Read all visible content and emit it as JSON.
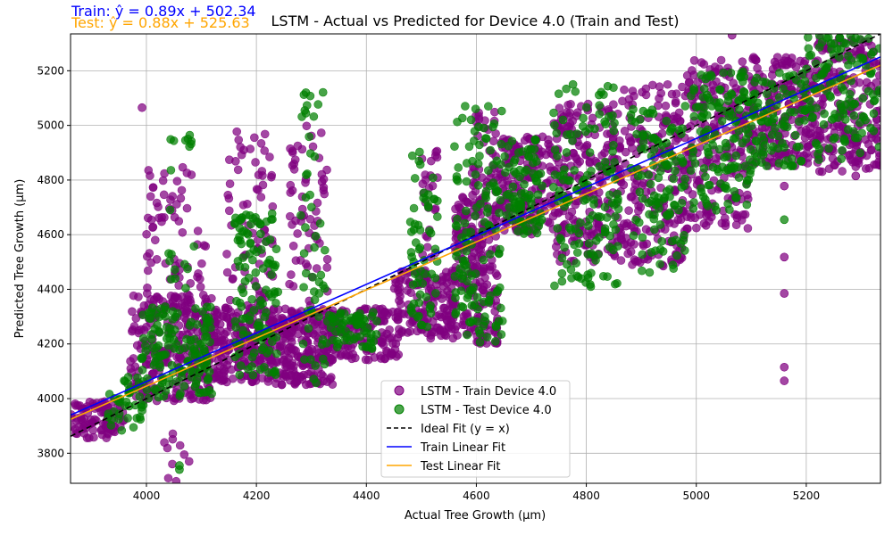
{
  "chart_data": {
    "type": "scatter",
    "title": "LSTM - Actual vs Predicted for Device 4.0 (Train and Test)",
    "xlabel": "Actual Tree Growth (µm)",
    "ylabel": "Predicted Tree Growth (µm)",
    "xlim": [
      3862,
      5335
    ],
    "ylim": [
      3690,
      5335
    ],
    "xticks": [
      4000,
      4200,
      4400,
      4600,
      4800,
      5000,
      5200
    ],
    "yticks": [
      3800,
      4000,
      4200,
      4400,
      4600,
      4800,
      5000,
      5200
    ],
    "grid": true,
    "legend_position": "lower-center",
    "annotations": {
      "train_equation": "Train: ŷ = 0.89x + 502.34",
      "test_equation": "Test: ŷ = 0.88x + 525.63",
      "train_color": "#0000ff",
      "test_color": "#ffa500"
    },
    "series": [
      {
        "name": "LSTM - Train Device 4.0",
        "kind": "scatter",
        "color": "#800080",
        "clusters": [
          {
            "x": [
              3862,
              3960
            ],
            "y": [
              3855,
              3990
            ],
            "n": 90
          },
          {
            "x": [
              3970,
              4120
            ],
            "y": [
              3990,
              4380
            ],
            "n": 260
          },
          {
            "x": [
              4000,
              4110
            ],
            "y": [
              4350,
              4880
            ],
            "n": 70
          },
          {
            "x": [
              4120,
              4235
            ],
            "y": [
              4060,
              4340
            ],
            "n": 220
          },
          {
            "x": [
              4140,
              4230
            ],
            "y": [
              4340,
              4980
            ],
            "n": 70
          },
          {
            "x": [
              4235,
              4340
            ],
            "y": [
              4050,
              4330
            ],
            "n": 220
          },
          {
            "x": [
              4260,
              4330
            ],
            "y": [
              4330,
              5000
            ],
            "n": 60
          },
          {
            "x": [
              4330,
              4460
            ],
            "y": [
              4140,
              4330
            ],
            "n": 140
          },
          {
            "x": [
              4450,
              4560
            ],
            "y": [
              4220,
              4470
            ],
            "n": 150
          },
          {
            "x": [
              4500,
              4530
            ],
            "y": [
              4470,
              4920
            ],
            "n": 25
          },
          {
            "x": [
              4560,
              4640
            ],
            "y": [
              4200,
              4740
            ],
            "n": 220
          },
          {
            "x": [
              4590,
              4640
            ],
            "y": [
              4740,
              5050
            ],
            "n": 40
          },
          {
            "x": [
              4640,
              4740
            ],
            "y": [
              4600,
              4960
            ],
            "n": 160
          },
          {
            "x": [
              4740,
              4860
            ],
            "y": [
              4500,
              5080
            ],
            "n": 220
          },
          {
            "x": [
              4860,
              4980
            ],
            "y": [
              4480,
              5150
            ],
            "n": 220
          },
          {
            "x": [
              4980,
              5100
            ],
            "y": [
              4620,
              5240
            ],
            "n": 220
          },
          {
            "x": [
              5100,
              5220
            ],
            "y": [
              4850,
              5250
            ],
            "n": 200
          },
          {
            "x": [
              5220,
              5335
            ],
            "y": [
              4830,
              5320
            ],
            "n": 200
          },
          {
            "x": [
              4030,
              4080
            ],
            "y": [
              3690,
              3880
            ],
            "n": 10
          }
        ],
        "outliers": [
          [
            3992,
            5065
          ],
          [
            5160,
            4115
          ],
          [
            5160,
            4065
          ],
          [
            5160,
            4385
          ],
          [
            5160,
            4518
          ],
          [
            5160,
            4778
          ],
          [
            5065,
            5330
          ],
          [
            5290,
            4815
          ]
        ]
      },
      {
        "name": "LSTM - Test Device 4.0",
        "kind": "scatter",
        "color": "#008000",
        "clusters": [
          {
            "x": [
              3930,
              3995
            ],
            "y": [
              3880,
              4080
            ],
            "n": 40
          },
          {
            "x": [
              3990,
              4120
            ],
            "y": [
              4000,
              4340
            ],
            "n": 140
          },
          {
            "x": [
              4040,
              4090
            ],
            "y": [
              4400,
              4980
            ],
            "n": 20
          },
          {
            "x": [
              4160,
              4240
            ],
            "y": [
              4080,
              4680
            ],
            "n": 120
          },
          {
            "x": [
              4280,
              4330
            ],
            "y": [
              4050,
              5130
            ],
            "n": 50
          },
          {
            "x": [
              4330,
              4420
            ],
            "y": [
              4180,
              4320
            ],
            "n": 60
          },
          {
            "x": [
              4480,
              4530
            ],
            "y": [
              4250,
              4910
            ],
            "n": 60
          },
          {
            "x": [
              4560,
              4650
            ],
            "y": [
              4200,
              5080
            ],
            "n": 130
          },
          {
            "x": [
              4650,
              4720
            ],
            "y": [
              4600,
              4960
            ],
            "n": 80
          },
          {
            "x": [
              4740,
              4860
            ],
            "y": [
              4400,
              5150
            ],
            "n": 140
          },
          {
            "x": [
              4880,
              4980
            ],
            "y": [
              4450,
              5080
            ],
            "n": 110
          },
          {
            "x": [
              4990,
              5100
            ],
            "y": [
              4680,
              5200
            ],
            "n": 130
          },
          {
            "x": [
              5100,
              5200
            ],
            "y": [
              4850,
              5200
            ],
            "n": 90
          },
          {
            "x": [
              5200,
              5335
            ],
            "y": [
              4870,
              5330
            ],
            "n": 120
          }
        ],
        "outliers": [
          [
            4060,
            3755
          ],
          [
            4060,
            3740
          ],
          [
            5160,
            4655
          ],
          [
            5160,
            4855
          ],
          [
            4290,
            5120
          ],
          [
            4290,
            5045
          ]
        ]
      },
      {
        "name": "Ideal Fit (y = x)",
        "kind": "line",
        "style": "dashed",
        "color": "#000000",
        "slope": 1.0,
        "intercept": 0.0
      },
      {
        "name": "Train Linear Fit",
        "kind": "line",
        "style": "solid",
        "color": "#0000ff",
        "slope": 0.89,
        "intercept": 502.34
      },
      {
        "name": "Test Linear Fit",
        "kind": "line",
        "style": "solid",
        "color": "#ffa500",
        "slope": 0.88,
        "intercept": 525.63
      }
    ]
  }
}
